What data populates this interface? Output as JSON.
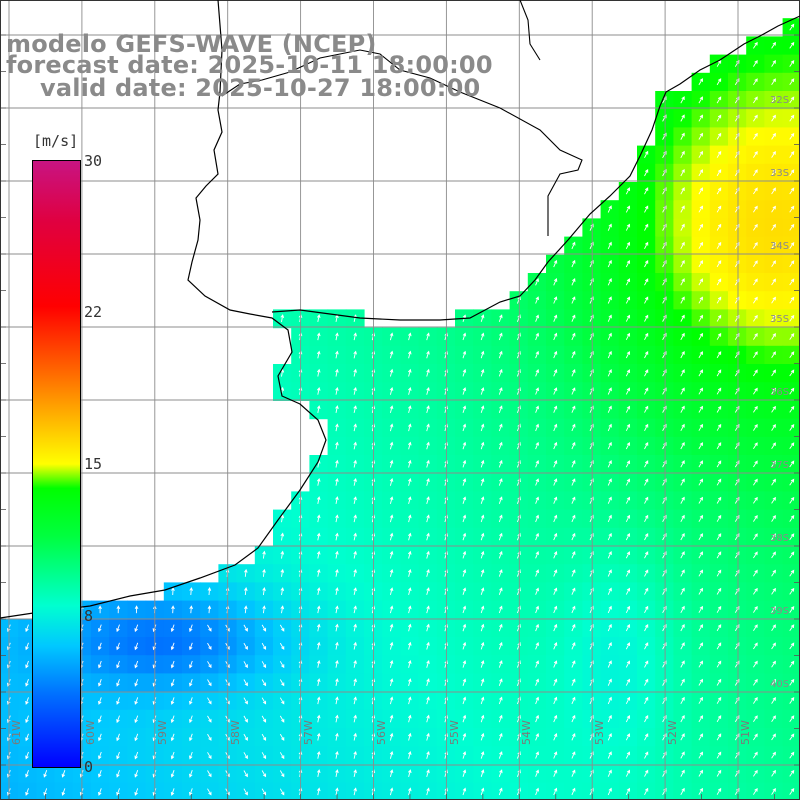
{
  "title": {
    "line1": "modelo GEFS-WAVE (NCEP)",
    "line2": "forecast date: 2025-10-11 18:00:00",
    "line3": "valid date: 2025-10-27 18:00:00"
  },
  "colorbar": {
    "unit": "[m/s]",
    "ticks": [
      "30",
      "22",
      "15",
      "8",
      "0"
    ],
    "min": 0,
    "max": 30,
    "colors": [
      "#0000ff",
      "#00c8ff",
      "#00ff00",
      "#ffff00",
      "#ff0000",
      "#c81482"
    ]
  },
  "axes": {
    "lon_labels": [
      "61W",
      "60W",
      "59W",
      "58W",
      "57W",
      "56W",
      "55W",
      "54W",
      "53W",
      "52W",
      "51W"
    ],
    "lat_labels": [
      "32S",
      "33S",
      "34S",
      "35S",
      "36S",
      "37S",
      "38S",
      "39S",
      "40S"
    ]
  },
  "map": {
    "land_color": "#ffffff",
    "grid_color": "#8c8c8c",
    "coast_color": "#000000",
    "vector_color": "#ffffff",
    "field": "wind speed with wind direction arrows"
  }
}
